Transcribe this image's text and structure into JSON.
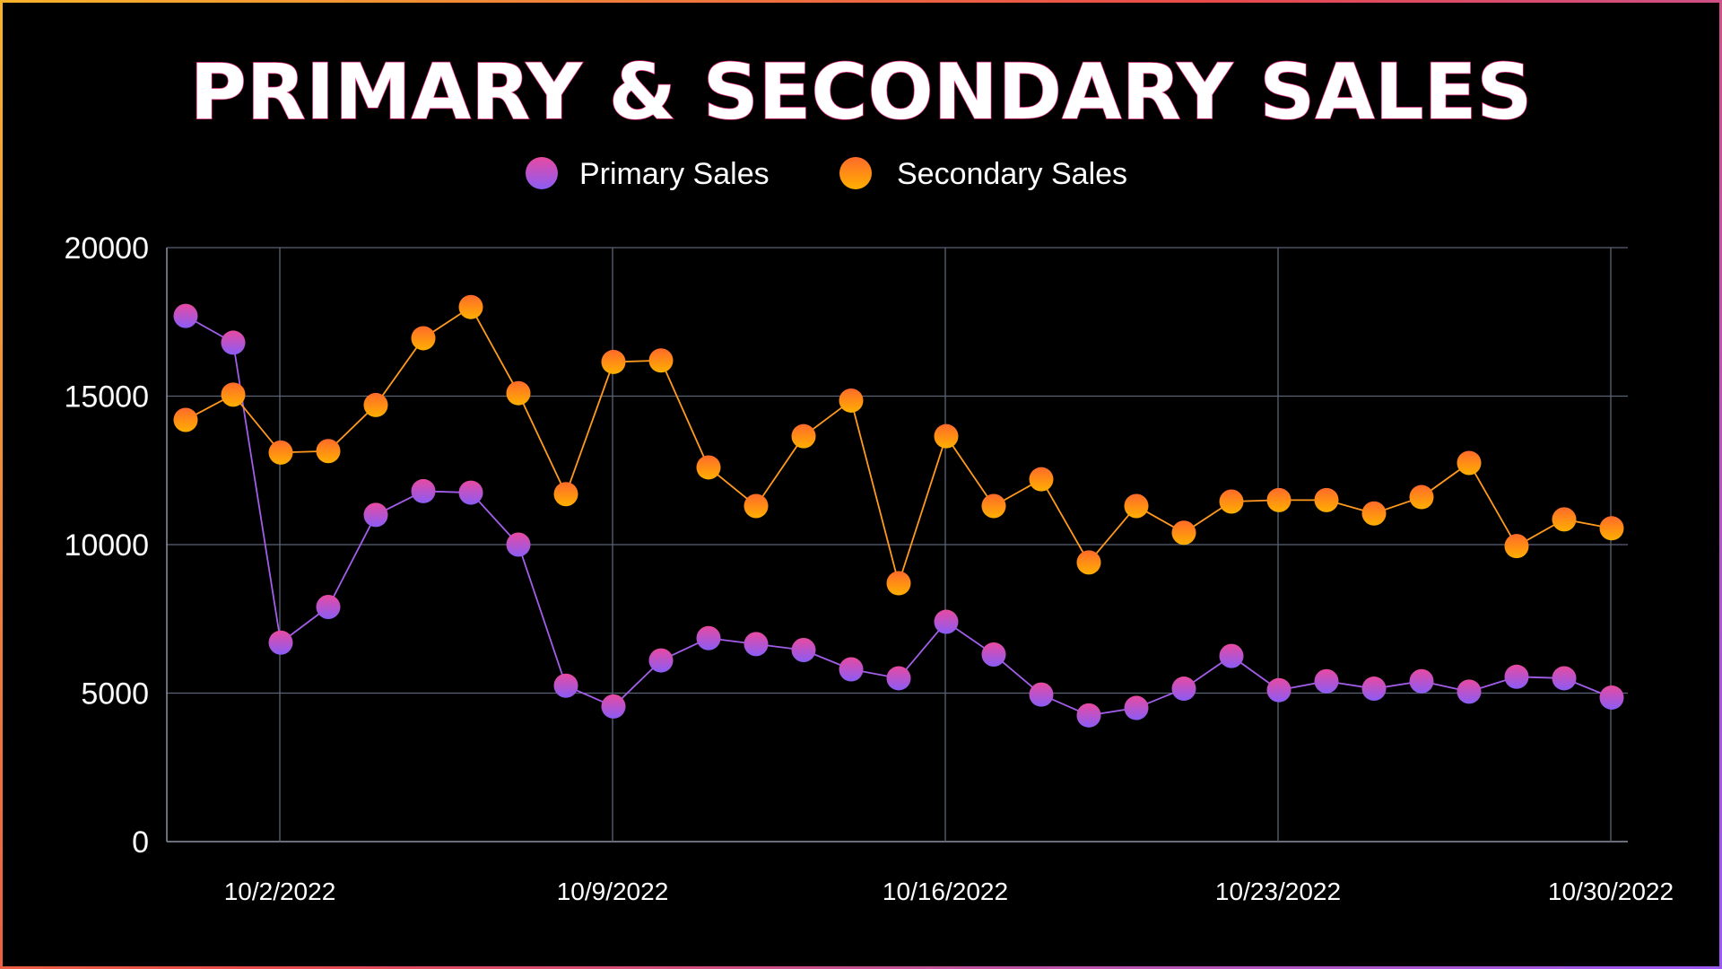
{
  "chart_data": {
    "type": "line",
    "title": "PRIMARY & SECONDARY SALES",
    "xlabel": "",
    "ylabel": "",
    "ylim": [
      0,
      20000
    ],
    "yticks": [
      "0",
      "5000",
      "10000",
      "15000",
      "20000"
    ],
    "x_start": "10/1/2022",
    "xticks": [
      "10/2/2022",
      "10/9/2022",
      "10/16/2022",
      "10/23/2022",
      "10/30/2022"
    ],
    "x": [
      "10/1/2022",
      "10/2/2022",
      "10/3/2022",
      "10/4/2022",
      "10/5/2022",
      "10/6/2022",
      "10/7/2022",
      "10/8/2022",
      "10/9/2022",
      "10/10/2022",
      "10/11/2022",
      "10/12/2022",
      "10/13/2022",
      "10/14/2022",
      "10/15/2022",
      "10/16/2022",
      "10/17/2022",
      "10/18/2022",
      "10/19/2022",
      "10/20/2022",
      "10/21/2022",
      "10/22/2022",
      "10/23/2022",
      "10/24/2022",
      "10/25/2022",
      "10/26/2022",
      "10/27/2022",
      "10/28/2022",
      "10/29/2022",
      "10/30/2022",
      "10/31/2022"
    ],
    "grid": true,
    "legend_position": "top-center",
    "series": [
      {
        "name": "Primary Sales",
        "color_top": "#e84aa0",
        "color_bottom": "#8a5cf6",
        "line_color": "#a25ee8",
        "values": [
          17700,
          16800,
          6700,
          7900,
          11000,
          11800,
          11750,
          10000,
          5250,
          4550,
          6100,
          6850,
          6650,
          6450,
          5800,
          5500,
          7400,
          6300,
          4950,
          4250,
          4500,
          5150,
          6250,
          5100,
          5400,
          5150,
          5400,
          5050,
          5550,
          5500,
          4850
        ]
      },
      {
        "name": "Secondary Sales",
        "color_top": "#ff6a2b",
        "color_bottom": "#ffb000",
        "line_color": "#ff9a1f",
        "values": [
          14200,
          15050,
          13100,
          13150,
          14700,
          16950,
          18000,
          15100,
          11700,
          16150,
          16200,
          12600,
          11300,
          13650,
          14850,
          8700,
          13650,
          11300,
          12200,
          9400,
          11300,
          10400,
          11450,
          11500,
          11500,
          11050,
          11600,
          12750,
          9950,
          10850,
          10550
        ]
      }
    ]
  }
}
